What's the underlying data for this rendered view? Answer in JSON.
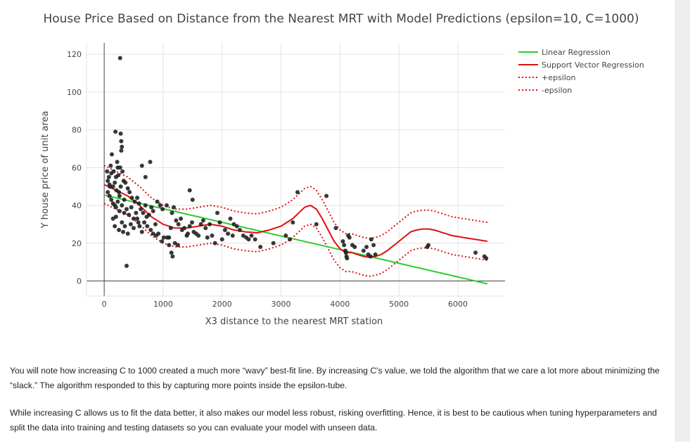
{
  "chart_data": {
    "type": "scatter",
    "title": "House Price Based on Distance from the Nearest MRT with Model Predictions (epsilon=10, C=1000)",
    "xlabel": "X3 distance to the nearest MRT station",
    "ylabel": "Y house price of unit area",
    "xlim": [
      -300,
      6800
    ],
    "ylim": [
      -8,
      126
    ],
    "xticks": [
      0,
      1000,
      2000,
      3000,
      4000,
      5000,
      6000
    ],
    "yticks": [
      0,
      20,
      40,
      60,
      80,
      100,
      120
    ],
    "grid": true,
    "legend_position": "top-right",
    "colors": {
      "points": "#222222",
      "linear": "#2ecc2e",
      "svr": "#dd1111",
      "epsilon": "#dd1111"
    },
    "points": [
      [
        270,
        118
      ],
      [
        190,
        79
      ],
      [
        280,
        78
      ],
      [
        290,
        74
      ],
      [
        300,
        71
      ],
      [
        290,
        69
      ],
      [
        130,
        67
      ],
      [
        780,
        63
      ],
      [
        110,
        61
      ],
      [
        220,
        63
      ],
      [
        230,
        60
      ],
      [
        270,
        60
      ],
      [
        640,
        61
      ],
      [
        700,
        55
      ],
      [
        120,
        57
      ],
      [
        160,
        58
      ],
      [
        200,
        55
      ],
      [
        240,
        56
      ],
      [
        310,
        58
      ],
      [
        80,
        55
      ],
      [
        50,
        58
      ],
      [
        60,
        53
      ],
      [
        100,
        50
      ],
      [
        150,
        50
      ],
      [
        180,
        52
      ],
      [
        210,
        48
      ],
      [
        250,
        47
      ],
      [
        280,
        50
      ],
      [
        330,
        53
      ],
      [
        360,
        52
      ],
      [
        400,
        49
      ],
      [
        430,
        47
      ],
      [
        470,
        44
      ],
      [
        520,
        42
      ],
      [
        560,
        44
      ],
      [
        590,
        41
      ],
      [
        60,
        47
      ],
      [
        90,
        45
      ],
      [
        120,
        43
      ],
      [
        150,
        41
      ],
      [
        180,
        40
      ],
      [
        200,
        39
      ],
      [
        230,
        42
      ],
      [
        260,
        37
      ],
      [
        300,
        40
      ],
      [
        340,
        36
      ],
      [
        380,
        38
      ],
      [
        420,
        35
      ],
      [
        460,
        39
      ],
      [
        500,
        33
      ],
      [
        540,
        36
      ],
      [
        580,
        31
      ],
      [
        620,
        38
      ],
      [
        660,
        36
      ],
      [
        700,
        40
      ],
      [
        720,
        34
      ],
      [
        760,
        35
      ],
      [
        800,
        39
      ],
      [
        830,
        37
      ],
      [
        870,
        30
      ],
      [
        900,
        42
      ],
      [
        950,
        40
      ],
      [
        990,
        38
      ],
      [
        1060,
        40
      ],
      [
        150,
        33
      ],
      [
        180,
        29
      ],
      [
        200,
        34
      ],
      [
        250,
        27
      ],
      [
        300,
        31
      ],
      [
        320,
        26
      ],
      [
        350,
        29
      ],
      [
        400,
        25
      ],
      [
        450,
        30
      ],
      [
        500,
        28
      ],
      [
        560,
        33
      ],
      [
        600,
        29
      ],
      [
        640,
        26
      ],
      [
        680,
        31
      ],
      [
        730,
        29
      ],
      [
        790,
        27
      ],
      [
        830,
        25
      ],
      [
        880,
        24
      ],
      [
        920,
        25
      ],
      [
        980,
        21
      ],
      [
        1010,
        23
      ],
      [
        1070,
        23
      ],
      [
        1100,
        19
      ],
      [
        1140,
        15
      ],
      [
        1160,
        13
      ],
      [
        1200,
        20
      ],
      [
        1250,
        19
      ],
      [
        1100,
        23
      ],
      [
        1130,
        28
      ],
      [
        1150,
        36
      ],
      [
        1180,
        39
      ],
      [
        1220,
        32
      ],
      [
        1260,
        30
      ],
      [
        1300,
        33
      ],
      [
        1320,
        27
      ],
      [
        1360,
        28
      ],
      [
        1400,
        24
      ],
      [
        1420,
        25
      ],
      [
        1450,
        29
      ],
      [
        1490,
        31
      ],
      [
        1520,
        26
      ],
      [
        1560,
        25
      ],
      [
        1600,
        24
      ],
      [
        1640,
        30
      ],
      [
        1680,
        32
      ],
      [
        1720,
        28
      ],
      [
        1750,
        23
      ],
      [
        1790,
        30
      ],
      [
        1830,
        24
      ],
      [
        1880,
        20
      ],
      [
        1920,
        36
      ],
      [
        1960,
        31
      ],
      [
        2000,
        22
      ],
      [
        2050,
        27
      ],
      [
        2100,
        25
      ],
      [
        2140,
        33
      ],
      [
        2180,
        24
      ],
      [
        2200,
        30
      ],
      [
        2250,
        29
      ],
      [
        2300,
        27
      ],
      [
        2360,
        24
      ],
      [
        2410,
        23
      ],
      [
        2450,
        22
      ],
      [
        2500,
        24
      ],
      [
        2560,
        22
      ],
      [
        2650,
        18
      ],
      [
        2870,
        20
      ],
      [
        3080,
        24
      ],
      [
        3150,
        22
      ],
      [
        3200,
        31
      ],
      [
        3280,
        47
      ],
      [
        3600,
        30
      ],
      [
        3770,
        45
      ],
      [
        3930,
        28
      ],
      [
        4050,
        21
      ],
      [
        4070,
        19
      ],
      [
        4090,
        16
      ],
      [
        4100,
        15
      ],
      [
        4110,
        13
      ],
      [
        4120,
        12
      ],
      [
        4140,
        24
      ],
      [
        4160,
        23
      ],
      [
        4210,
        19
      ],
      [
        4250,
        18
      ],
      [
        4400,
        16
      ],
      [
        4450,
        18
      ],
      [
        4480,
        14
      ],
      [
        4520,
        13
      ],
      [
        4530,
        22
      ],
      [
        4570,
        19
      ],
      [
        4600,
        14
      ],
      [
        5480,
        18
      ],
      [
        5500,
        19
      ],
      [
        6300,
        15
      ],
      [
        6450,
        13
      ],
      [
        6480,
        12
      ],
      [
        380,
        8
      ],
      [
        1450,
        48
      ],
      [
        1500,
        43
      ],
      [
        340,
        43
      ],
      [
        260,
        45
      ],
      [
        90,
        51
      ]
    ],
    "series": [
      {
        "name": "Linear Regression",
        "x": [
          0,
          6500
        ],
        "y": [
          45.5,
          -1.5
        ]
      },
      {
        "name": "Support Vector Regression",
        "x": [
          0,
          200,
          400,
          600,
          800,
          1000,
          1200,
          1400,
          1600,
          1800,
          2000,
          2200,
          2400,
          2600,
          2800,
          3000,
          3200,
          3300,
          3400,
          3500,
          3600,
          3700,
          3800,
          3900,
          4000,
          4100,
          4200,
          4300,
          4400,
          4500,
          4600,
          4700,
          4800,
          4900,
          5000,
          5100,
          5200,
          5300,
          5400,
          5500,
          5600,
          5700,
          5800,
          5900,
          6000,
          6100,
          6200,
          6300,
          6400,
          6500
        ],
        "y": [
          51,
          48,
          45,
          40,
          34,
          30,
          28,
          28,
          29,
          30,
          29,
          27,
          26,
          25.5,
          27,
          29,
          33,
          36,
          39,
          40,
          38,
          33,
          27,
          21,
          17,
          15,
          15,
          14,
          13,
          12.5,
          13,
          14,
          16,
          18.5,
          21,
          23.5,
          26,
          27,
          27.5,
          27.5,
          27,
          26,
          25,
          24,
          23.5,
          23,
          22.5,
          22,
          21.5,
          21
        ]
      },
      {
        "name": "+epsilon",
        "offset": 10
      },
      {
        "name": "-epsilon",
        "offset": -10
      }
    ]
  },
  "article": {
    "paragraph_1": "You will note how increasing C to 1000 created a much more “wavy” best-fit line. By increasing C's value, we told the algorithm that we care a lot more about minimizing the “slack.” The algorithm responded to this by capturing more points inside the epsilon-tube.",
    "paragraph_2": "While increasing C allows us to fit the data better, it also makes our model less robust, risking overfitting. Hence, it is best to be cautious when tuning hyperparameters and split the data into training and testing datasets so you can evaluate your model with unseen data."
  }
}
